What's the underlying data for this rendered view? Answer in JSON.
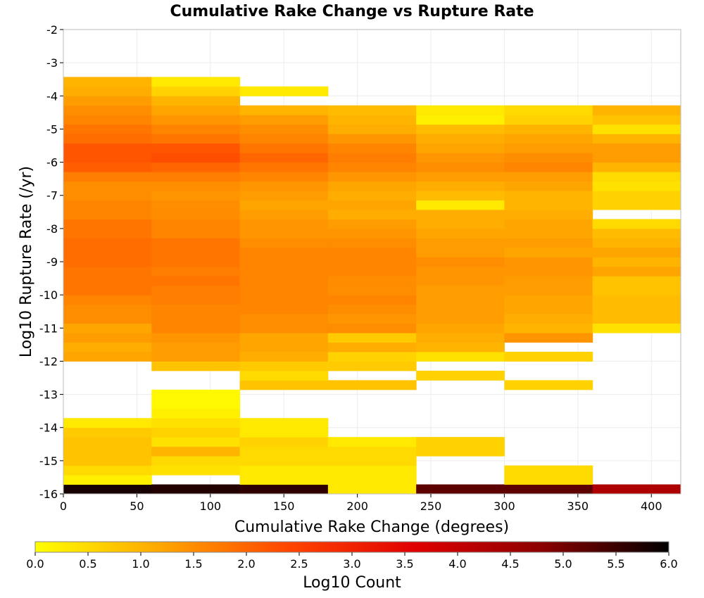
{
  "chart_data": {
    "type": "heatmap",
    "title": "Cumulative Rake Change vs Rupture Rate",
    "xlabel": "Cumulative Rake Change (degrees)",
    "ylabel": "Log10 Rupture Rate (/yr)",
    "colorbar_label": "Log10 Count",
    "xlim": [
      0,
      420
    ],
    "ylim": [
      -16,
      -2
    ],
    "x_ticks": [
      "0",
      "50",
      "100",
      "150",
      "200",
      "250",
      "300",
      "350",
      "400"
    ],
    "y_ticks": [
      "-2",
      "-3",
      "-4",
      "-5",
      "-6",
      "-7",
      "-8",
      "-9",
      "-10",
      "-11",
      "-12",
      "-13",
      "-14",
      "-15",
      "-16"
    ],
    "colorbar_ticks": [
      "0.0",
      "0.5",
      "1.0",
      "1.5",
      "2.0",
      "2.5",
      "3.0",
      "3.5",
      "4.0",
      "4.5",
      "5.0",
      "5.5",
      "6.0"
    ],
    "colorbar_range": [
      0,
      6
    ],
    "colormap": [
      "#ffff00",
      "#ffa500",
      "#ff4500",
      "#e00000",
      "#8b0000",
      "#000000"
    ],
    "x_bin_starts": [
      0,
      60,
      120,
      180,
      240,
      300,
      360
    ],
    "x_bin_width": 60,
    "y_bin_height": 0.2857,
    "y_bin_starts": [
      -16.0,
      -15.7143,
      -15.4286,
      -15.1429,
      -14.8571,
      -14.5714,
      -14.2857,
      -14.0,
      -13.7143,
      -13.4286,
      -13.1429,
      -12.8571,
      -12.5714,
      -12.2857,
      -12.0,
      -11.7143,
      -11.4286,
      -11.1429,
      -10.8571,
      -10.5714,
      -10.2857,
      -10.0,
      -9.7143,
      -9.4286,
      -9.1429,
      -8.8571,
      -8.5714,
      -8.2857,
      -8.0,
      -7.7143,
      -7.4286,
      -7.1429,
      -6.8571,
      -6.5714,
      -6.2857,
      -6.0,
      -5.7143,
      -5.4286,
      -5.1429,
      -4.8571,
      -4.5714,
      -4.2857,
      -4.0,
      -3.7143
    ],
    "values": [
      [
        5.8,
        0.2,
        0.5,
        0.8,
        0.8,
        0.8,
        0.7,
        0.3,
        null,
        null,
        null,
        null,
        null,
        null,
        1.2,
        1.1,
        1.3,
        1.2,
        1.5,
        1.5,
        1.6,
        1.8,
        1.8,
        1.8,
        1.9,
        1.9,
        1.9,
        1.8,
        1.8,
        1.6,
        1.6,
        1.5,
        1.5,
        1.7,
        2.1,
        2.2,
        2.2,
        1.9,
        1.8,
        1.6,
        1.5,
        1.3,
        1.1,
        1.0
      ],
      [
        5.7,
        null,
        0.4,
        0.5,
        1.0,
        0.4,
        0.6,
        0.4,
        0.2,
        0.1,
        0.1,
        null,
        null,
        0.8,
        1.3,
        1.3,
        1.4,
        1.6,
        1.6,
        1.6,
        1.7,
        1.7,
        1.8,
        1.7,
        1.8,
        1.8,
        1.8,
        1.6,
        1.6,
        1.5,
        1.5,
        1.4,
        1.5,
        1.7,
        2.0,
        2.3,
        2.2,
        1.8,
        1.6,
        1.4,
        1.2,
        1.0,
        0.6,
        0.3
      ],
      [
        5.6,
        0.3,
        0.3,
        0.5,
        0.5,
        0.6,
        0.3,
        0.3,
        null,
        null,
        null,
        0.8,
        0.5,
        0.7,
        1.1,
        1.2,
        1.2,
        1.5,
        1.5,
        1.6,
        1.6,
        1.6,
        1.6,
        1.6,
        1.6,
        1.6,
        1.5,
        1.4,
        1.4,
        1.3,
        1.2,
        1.3,
        1.4,
        1.6,
        1.8,
        2.0,
        1.8,
        1.6,
        1.5,
        1.3,
        1.0,
        null,
        0.3,
        null
      ],
      [
        0.3,
        0.3,
        0.3,
        0.5,
        0.5,
        0.3,
        null,
        null,
        null,
        null,
        null,
        0.8,
        null,
        0.7,
        0.6,
        1.1,
        0.7,
        1.5,
        1.4,
        1.5,
        1.6,
        1.5,
        1.5,
        1.6,
        1.6,
        1.6,
        1.5,
        1.4,
        1.3,
        1.1,
        1.2,
        1.1,
        1.2,
        1.4,
        1.6,
        1.7,
        1.6,
        1.4,
        1.1,
        1.0,
        0.9,
        null,
        null,
        null
      ],
      [
        5.2,
        null,
        null,
        null,
        0.6,
        0.6,
        null,
        null,
        null,
        null,
        null,
        null,
        0.6,
        null,
        0.4,
        1.0,
        1.1,
        1.2,
        1.3,
        1.3,
        1.3,
        1.3,
        1.4,
        1.4,
        1.5,
        1.3,
        1.3,
        1.2,
        1.1,
        1.1,
        0.3,
        0.9,
        1.1,
        1.3,
        1.5,
        1.4,
        1.2,
        1.1,
        0.9,
        0.2,
        0.3,
        null,
        null,
        null
      ],
      [
        5.2,
        0.5,
        0.5,
        null,
        null,
        null,
        null,
        null,
        null,
        null,
        null,
        0.6,
        null,
        null,
        0.6,
        null,
        1.4,
        1.0,
        1.1,
        1.2,
        1.2,
        1.3,
        1.3,
        1.4,
        1.4,
        1.2,
        1.3,
        1.2,
        1.2,
        1.1,
        1.0,
        1.0,
        1.2,
        1.3,
        1.6,
        1.5,
        1.3,
        1.2,
        1.0,
        0.6,
        0.5,
        null,
        null,
        null
      ],
      [
        4.3,
        null,
        null,
        null,
        null,
        null,
        null,
        null,
        null,
        null,
        null,
        null,
        null,
        null,
        null,
        null,
        null,
        0.4,
        0.9,
        0.9,
        0.9,
        0.8,
        0.8,
        1.2,
        1.0,
        1.2,
        1.0,
        0.9,
        0.5,
        null,
        0.6,
        0.6,
        0.4,
        0.5,
        1.0,
        1.3,
        1.3,
        1.0,
        0.4,
        0.8,
        1.0,
        null,
        null,
        null
      ]
    ]
  }
}
